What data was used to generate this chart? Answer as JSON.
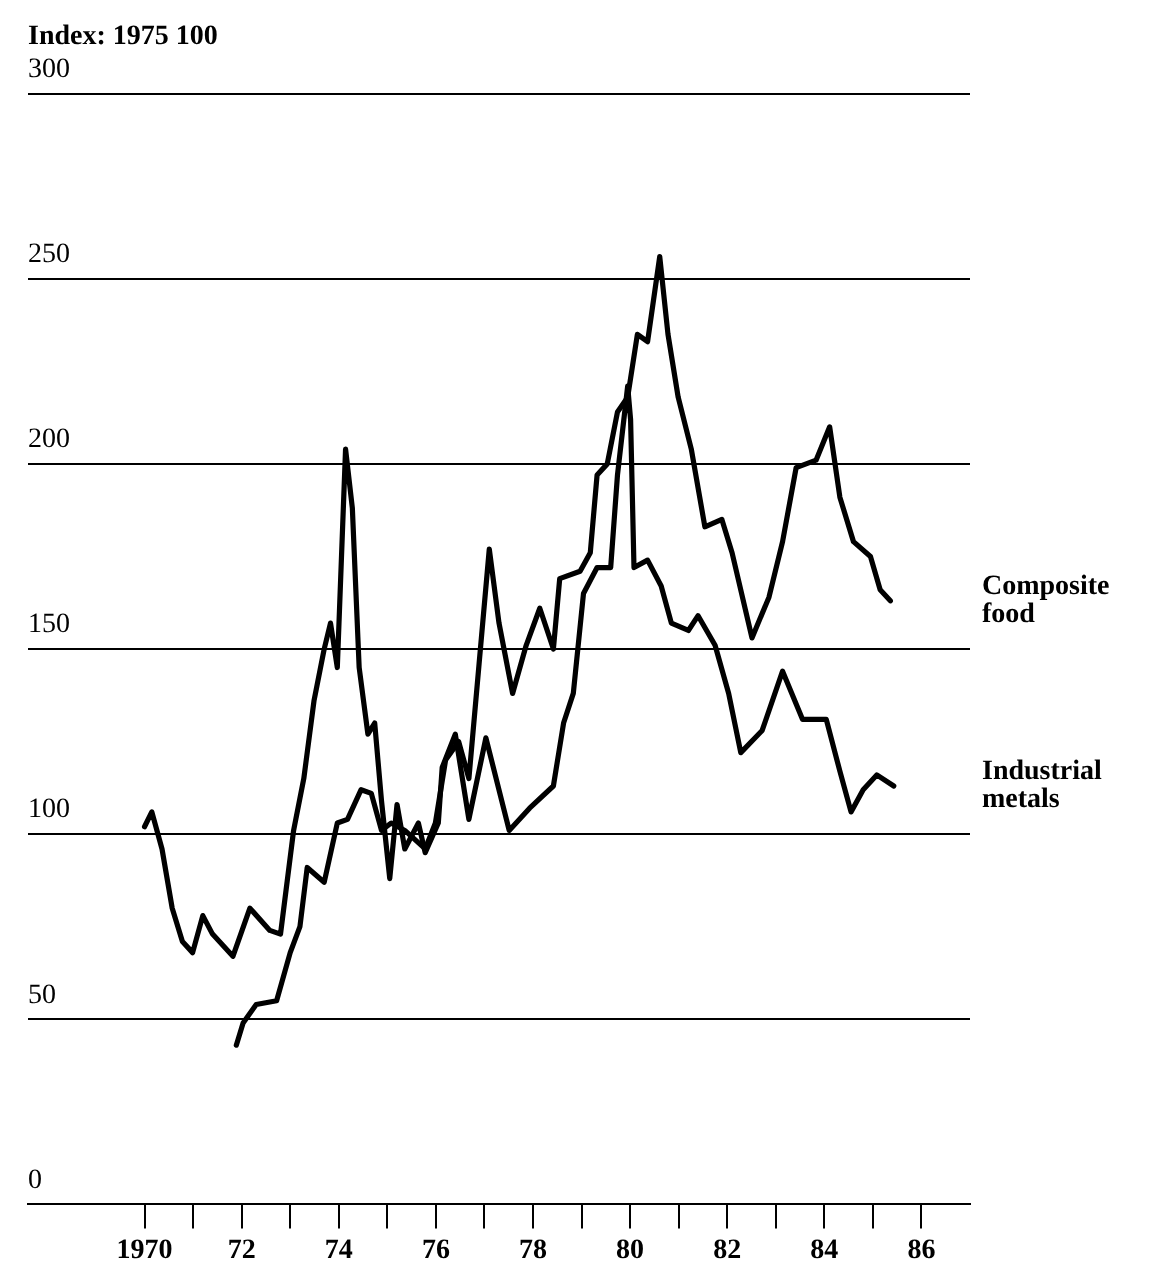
{
  "chart_data": {
    "type": "line",
    "ylabel": "Index: 1975 100",
    "xlim": [
      1967.6,
      1987
    ],
    "xticks": [
      {
        "value": 1970,
        "label": "1970"
      },
      {
        "value": 1971,
        "label": null
      },
      {
        "value": 1972,
        "label": "72"
      },
      {
        "value": 1973,
        "label": null
      },
      {
        "value": 1974,
        "label": "74"
      },
      {
        "value": 1975,
        "label": null
      },
      {
        "value": 1976,
        "label": "76"
      },
      {
        "value": 1977,
        "label": null
      },
      {
        "value": 1978,
        "label": "78"
      },
      {
        "value": 1979,
        "label": null
      },
      {
        "value": 1980,
        "label": "80"
      },
      {
        "value": 1981,
        "label": null
      },
      {
        "value": 1982,
        "label": "82"
      },
      {
        "value": 1983,
        "label": null
      },
      {
        "value": 1984,
        "label": "84"
      },
      {
        "value": 1985,
        "label": null
      },
      {
        "value": 1986,
        "label": "86"
      }
    ],
    "ylim": [
      0,
      300
    ],
    "yticks": [
      0,
      50,
      100,
      150,
      200,
      250,
      300
    ],
    "grid": "y",
    "legend": false,
    "marker": "none",
    "line_style": "solid",
    "series": [
      {
        "name": "Composite food",
        "color": "#000000",
        "x": [
          1971.89,
          1972.03,
          1972.3,
          1972.72,
          1973.0,
          1973.2,
          1973.35,
          1973.7,
          1973.97,
          1974.18,
          1974.46,
          1974.67,
          1974.88,
          1975.08,
          1975.36,
          1975.78,
          1975.99,
          1976.2,
          1976.47,
          1976.68,
          1976.89,
          1977.1,
          1977.3,
          1977.58,
          1977.86,
          1978.14,
          1978.42,
          1978.55,
          1978.97,
          1979.18,
          1979.32,
          1979.53,
          1979.74,
          1979.95,
          1980.15,
          1980.36,
          1980.61,
          1980.78,
          1980.99,
          1981.26,
          1981.54,
          1981.89,
          1982.1,
          1982.51,
          1982.86,
          1983.14,
          1983.42,
          1983.83,
          1984.11,
          1984.32,
          1984.6,
          1984.95,
          1985.15,
          1985.36
        ],
        "values": [
          43,
          49,
          54,
          55,
          68,
          75,
          91,
          87,
          103,
          104,
          112,
          111,
          101,
          103,
          101,
          96,
          103,
          120,
          125,
          115,
          146,
          177,
          157,
          138,
          151,
          161,
          150,
          169,
          171,
          176,
          197,
          200,
          214,
          218,
          235,
          233,
          256,
          235,
          218,
          204,
          183,
          185,
          176,
          153,
          164,
          179,
          199,
          201,
          210,
          191,
          179,
          175,
          166,
          163
        ]
      },
      {
        "name": "Industrial metals",
        "color": "#000000",
        "x": [
          1970.0,
          1970.15,
          1970.36,
          1970.57,
          1970.78,
          1970.99,
          1971.2,
          1971.4,
          1971.82,
          1972.17,
          1972.58,
          1972.8,
          1973.07,
          1973.28,
          1973.49,
          1973.7,
          1973.83,
          1973.97,
          1974.14,
          1974.28,
          1974.42,
          1974.6,
          1974.74,
          1974.88,
          1975.05,
          1975.2,
          1975.36,
          1975.64,
          1975.78,
          1976.05,
          1976.13,
          1976.4,
          1976.68,
          1977.03,
          1977.51,
          1977.93,
          1978.42,
          1978.63,
          1978.83,
          1979.04,
          1979.32,
          1979.6,
          1979.74,
          1979.95,
          1980.01,
          1980.08,
          1980.36,
          1980.64,
          1980.85,
          1981.2,
          1981.4,
          1981.75,
          1982.03,
          1982.28,
          1982.72,
          1983.14,
          1983.55,
          1984.04,
          1984.32,
          1984.55,
          1984.8,
          1985.08,
          1985.43
        ],
        "values": [
          102,
          106,
          96,
          80,
          71,
          68,
          78,
          73,
          67,
          80,
          74,
          73,
          101,
          115,
          136,
          150,
          157,
          145,
          204,
          188,
          145,
          127,
          130,
          109,
          88,
          108,
          96,
          103,
          95,
          103,
          118,
          127,
          104,
          126,
          101,
          107,
          113,
          130,
          138,
          165,
          172,
          172,
          197,
          221,
          212,
          172,
          174,
          167,
          157,
          155,
          159,
          151,
          138,
          122,
          128,
          144,
          131,
          131,
          117,
          106,
          112,
          116,
          113
        ]
      }
    ]
  }
}
